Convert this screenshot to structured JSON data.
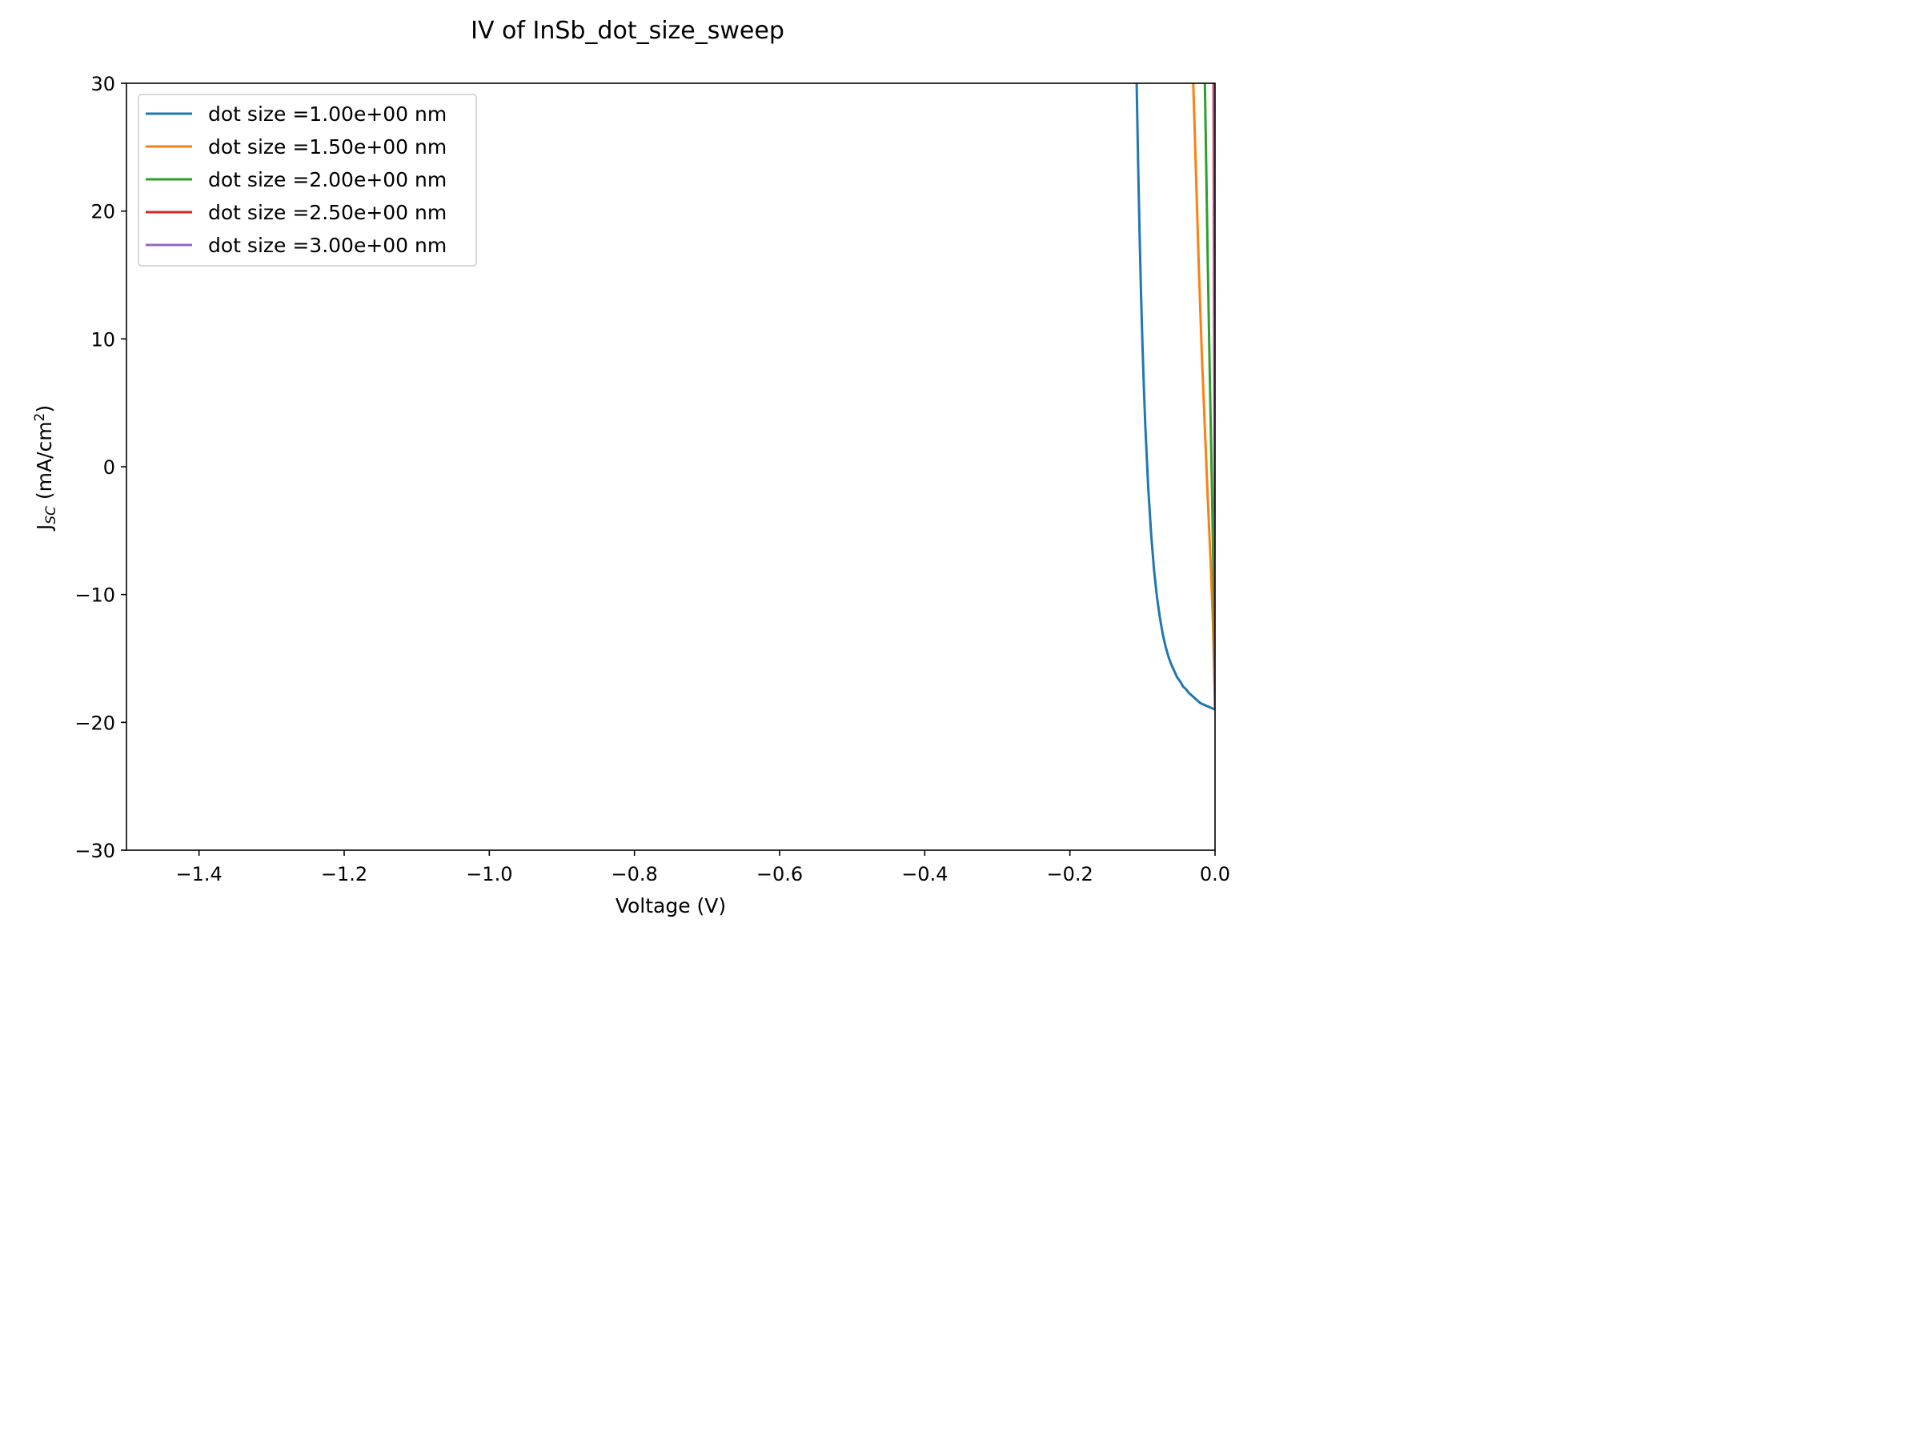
{
  "chart_data": {
    "type": "line",
    "title": "IV of InSb_dot_size_sweep",
    "xlabel": "Voltage (V)",
    "ylabel_main": "J",
    "ylabel_sub": "SC",
    "ylabel_unit": " (mA/cm",
    "ylabel_sup": "2",
    "ylabel_close": ")",
    "xlim": [
      -1.5,
      0.0
    ],
    "ylim": [
      -30,
      30
    ],
    "xticks": [
      -1.4,
      -1.2,
      -1.0,
      -0.8,
      -0.6,
      -0.4,
      -0.2,
      0.0
    ],
    "xtick_labels": [
      "−1.4",
      "−1.2",
      "−1.0",
      "−0.8",
      "−0.6",
      "−0.4",
      "−0.2",
      "0.0"
    ],
    "yticks": [
      -30,
      -20,
      -10,
      0,
      10,
      20,
      30
    ],
    "ytick_labels": [
      "−30",
      "−20",
      "−10",
      "0",
      "10",
      "20",
      "30"
    ],
    "grid": false,
    "legend_position": "top-left",
    "series": [
      {
        "name": "dot size =1.00e+00 nm",
        "color": "#1f77b4",
        "x": [
          -0.108,
          -0.106,
          -0.104,
          -0.102,
          -0.1,
          -0.098,
          -0.096,
          -0.092,
          -0.088,
          -0.084,
          -0.08,
          -0.076,
          -0.072,
          -0.068,
          -0.064,
          -0.06,
          -0.056,
          -0.052,
          -0.048,
          -0.044,
          -0.04,
          -0.036,
          -0.032,
          -0.028,
          -0.024,
          -0.02,
          -0.016,
          -0.012,
          -0.008,
          -0.004,
          0.0
        ],
        "y": [
          30.0,
          23.8,
          18.3,
          13.6,
          9.6,
          6.1,
          3.1,
          -1.7,
          -5.3,
          -8.1,
          -10.2,
          -11.8,
          -13.1,
          -14.1,
          -14.9,
          -15.5,
          -16.0,
          -16.5,
          -16.8,
          -17.2,
          -17.4,
          -17.7,
          -17.9,
          -18.1,
          -18.3,
          -18.5,
          -18.6,
          -18.7,
          -18.8,
          -18.9,
          -19.0
        ]
      },
      {
        "name": "dot size =1.50e+00 nm",
        "color": "#ff7f0e",
        "x": [
          -0.03,
          -0.026,
          -0.022,
          -0.018,
          -0.014,
          -0.01,
          -0.006,
          -0.003,
          -0.001,
          0.0
        ],
        "y": [
          30.0,
          22.5,
          15.0,
          8.5,
          3.0,
          -2.5,
          -7.5,
          -12.0,
          -16.5,
          -19.0
        ]
      },
      {
        "name": "dot size =2.00e+00 nm",
        "color": "#2ca02c",
        "x": [
          -0.014,
          -0.012,
          -0.01,
          -0.008,
          -0.006,
          -0.004,
          -0.002,
          -0.001,
          0.0
        ],
        "y": [
          30.0,
          23.0,
          16.0,
          9.5,
          3.5,
          -2.5,
          -9.0,
          -14.0,
          -19.0
        ]
      },
      {
        "name": "dot size =2.50e+00 nm",
        "color": "#d62728",
        "x": [
          -0.002,
          -0.0015,
          -0.001,
          -0.0005,
          0.0
        ],
        "y": [
          30.0,
          18.0,
          6.0,
          -6.0,
          -19.0
        ]
      },
      {
        "name": "dot size =3.00e+00 nm",
        "color": "#9467bd",
        "x": [
          -0.0008,
          -0.0006,
          -0.0004,
          -0.0002,
          0.0
        ],
        "y": [
          30.0,
          18.0,
          6.0,
          -6.0,
          -19.0
        ]
      }
    ]
  }
}
